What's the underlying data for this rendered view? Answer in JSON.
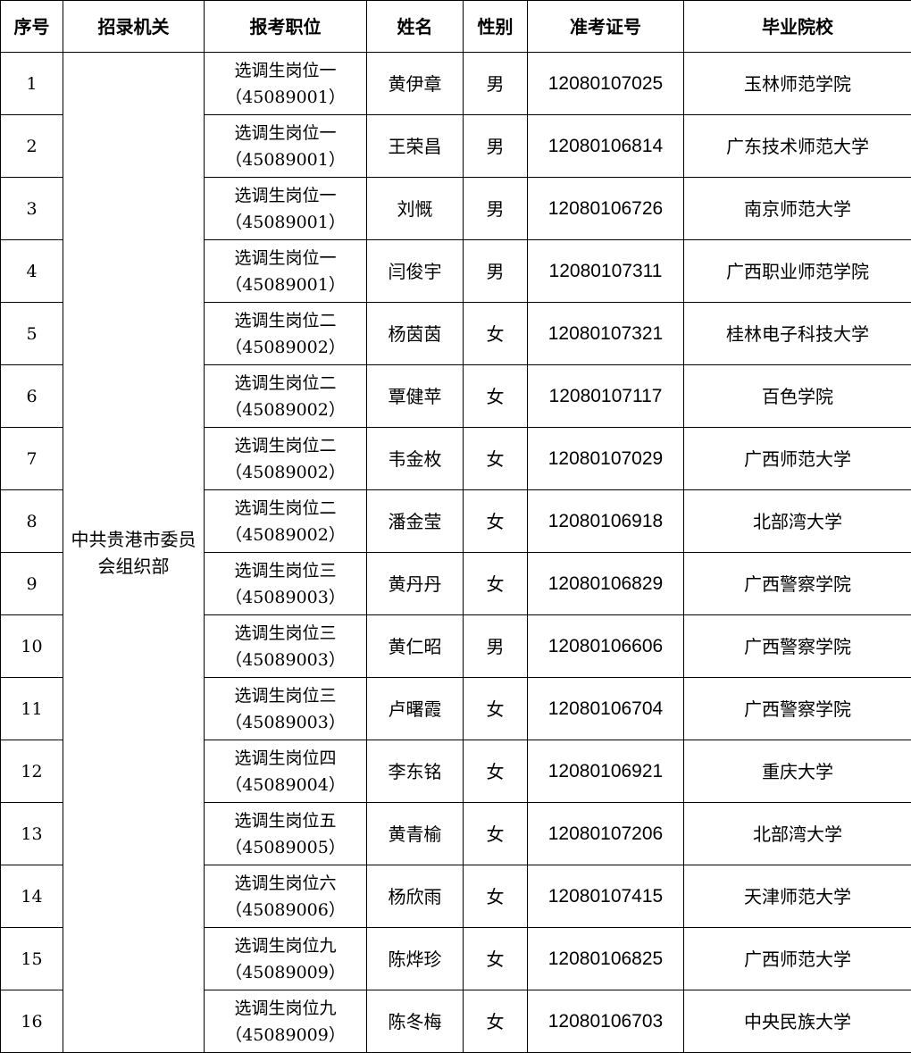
{
  "headers": [
    "序号",
    "招录机关",
    "报考职位",
    "姓名",
    "性别",
    "准考证号",
    "毕业院校"
  ],
  "agency": "中共贵港市委员会组织部",
  "rows": [
    {
      "no": "1",
      "position": "选调生岗位一",
      "code": "（45089001）",
      "name": "黄伊章",
      "gender": "男",
      "exam_id": "12080107025",
      "school": "玉林师范学院"
    },
    {
      "no": "2",
      "position": "选调生岗位一",
      "code": "（45089001）",
      "name": "王荣昌",
      "gender": "男",
      "exam_id": "12080106814",
      "school": "广东技术师范大学"
    },
    {
      "no": "3",
      "position": "选调生岗位一",
      "code": "（45089001）",
      "name": "刘慨",
      "gender": "男",
      "exam_id": "12080106726",
      "school": "南京师范大学"
    },
    {
      "no": "4",
      "position": "选调生岗位一",
      "code": "（45089001）",
      "name": "闫俊宇",
      "gender": "男",
      "exam_id": "12080107311",
      "school": "广西职业师范学院"
    },
    {
      "no": "5",
      "position": "选调生岗位二",
      "code": "（45089002）",
      "name": "杨茵茵",
      "gender": "女",
      "exam_id": "12080107321",
      "school": "桂林电子科技大学"
    },
    {
      "no": "6",
      "position": "选调生岗位二",
      "code": "（45089002）",
      "name": "覃健苹",
      "gender": "女",
      "exam_id": "12080107117",
      "school": "百色学院"
    },
    {
      "no": "7",
      "position": "选调生岗位二",
      "code": "（45089002）",
      "name": "韦金枚",
      "gender": "女",
      "exam_id": "12080107029",
      "school": "广西师范大学"
    },
    {
      "no": "8",
      "position": "选调生岗位二",
      "code": "（45089002）",
      "name": "潘金莹",
      "gender": "女",
      "exam_id": "12080106918",
      "school": "北部湾大学"
    },
    {
      "no": "9",
      "position": "选调生岗位三",
      "code": "（45089003）",
      "name": "黄丹丹",
      "gender": "女",
      "exam_id": "12080106829",
      "school": "广西警察学院"
    },
    {
      "no": "10",
      "position": "选调生岗位三",
      "code": "（45089003）",
      "name": "黄仁昭",
      "gender": "男",
      "exam_id": "12080106606",
      "school": "广西警察学院"
    },
    {
      "no": "11",
      "position": "选调生岗位三",
      "code": "（45089003）",
      "name": "卢曙霞",
      "gender": "女",
      "exam_id": "12080106704",
      "school": "广西警察学院"
    },
    {
      "no": "12",
      "position": "选调生岗位四",
      "code": "（45089004）",
      "name": "李东铭",
      "gender": "女",
      "exam_id": "12080106921",
      "school": "重庆大学"
    },
    {
      "no": "13",
      "position": "选调生岗位五",
      "code": "（45089005）",
      "name": "黄青榆",
      "gender": "女",
      "exam_id": "12080107206",
      "school": "北部湾大学"
    },
    {
      "no": "14",
      "position": "选调生岗位六",
      "code": "（45089006）",
      "name": "杨欣雨",
      "gender": "女",
      "exam_id": "12080107415",
      "school": "天津师范大学"
    },
    {
      "no": "15",
      "position": "选调生岗位九",
      "code": "（45089009）",
      "name": "陈烨珍",
      "gender": "女",
      "exam_id": "12080106825",
      "school": "广西师范大学"
    },
    {
      "no": "16",
      "position": "选调生岗位九",
      "code": "（45089009）",
      "name": "陈冬梅",
      "gender": "女",
      "exam_id": "12080106703",
      "school": "中央民族大学"
    }
  ]
}
